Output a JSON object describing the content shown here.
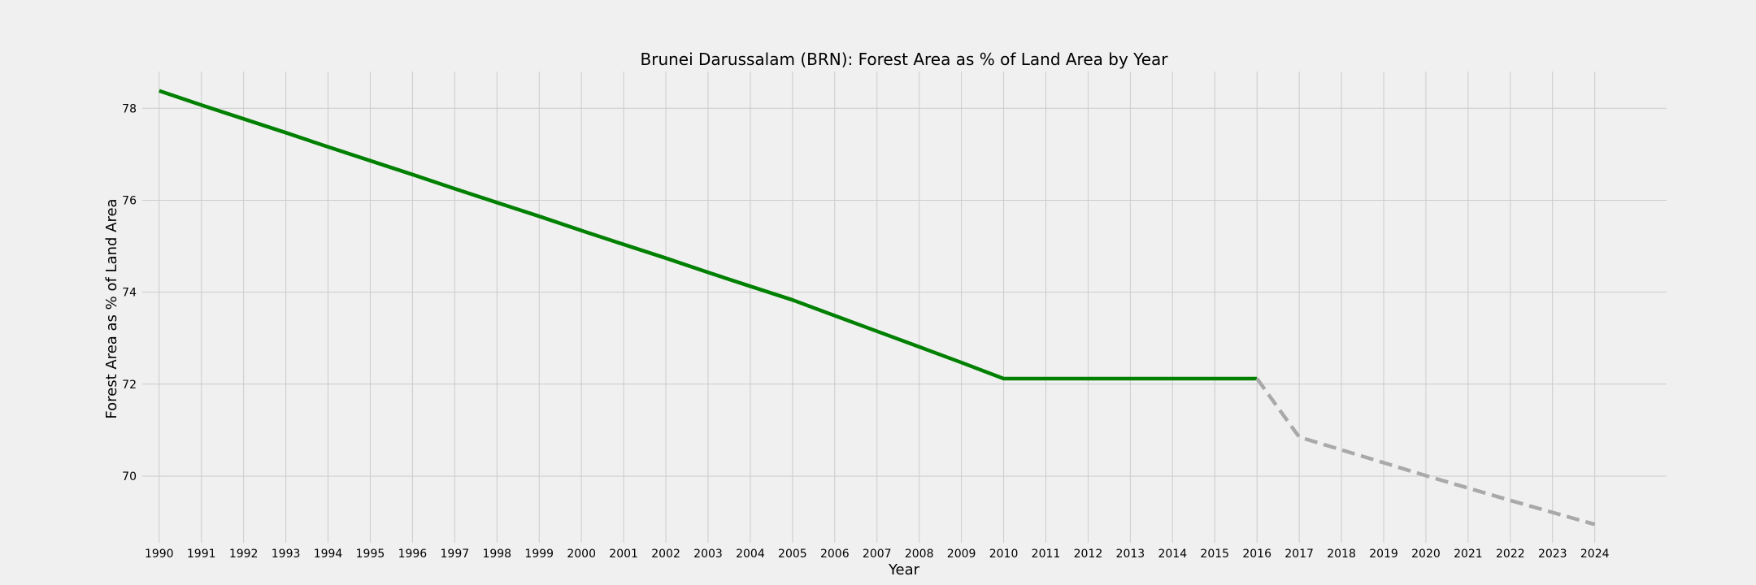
{
  "chart_data": {
    "type": "line",
    "title": "Brunei Darussalam (BRN): Forest Area as % of Land Area by Year",
    "xlabel": "Year",
    "ylabel": "Forest Area as % of Land Area",
    "x": [
      1990,
      1991,
      1992,
      1993,
      1994,
      1995,
      1996,
      1997,
      1998,
      1999,
      2000,
      2001,
      2002,
      2003,
      2004,
      2005,
      2006,
      2007,
      2008,
      2009,
      2010,
      2011,
      2012,
      2013,
      2014,
      2015,
      2016,
      2017,
      2018,
      2019,
      2020,
      2021,
      2022,
      2023,
      2024
    ],
    "xlim": [
      1989.6,
      2025.7
    ],
    "ylim": [
      68.55,
      78.8
    ],
    "yticks": [
      70,
      72,
      74,
      76,
      78
    ],
    "grid": true,
    "series": [
      {
        "style": "solid",
        "color": "#008000",
        "x": [
          1990,
          1991,
          1992,
          1993,
          1994,
          1995,
          1996,
          1997,
          1998,
          1999,
          2000,
          2001,
          2002,
          2003,
          2004,
          2005,
          2006,
          2007,
          2008,
          2009,
          2010,
          2011,
          2012,
          2013,
          2014,
          2015,
          2016
        ],
        "values": [
          78.38,
          78.07,
          77.77,
          77.47,
          77.16,
          76.86,
          76.56,
          76.25,
          75.95,
          75.65,
          75.34,
          75.04,
          74.74,
          74.43,
          74.13,
          73.83,
          73.49,
          73.15,
          72.81,
          72.47,
          72.12,
          72.12,
          72.12,
          72.12,
          72.12,
          72.12,
          72.12
        ]
      },
      {
        "style": "dashed",
        "color": "#a9a9a9",
        "x": [
          2016,
          2017,
          2018,
          2019,
          2020,
          2021,
          2022,
          2023,
          2024
        ],
        "values": [
          72.12,
          70.85,
          70.57,
          70.29,
          70.01,
          69.74,
          69.47,
          69.21,
          68.95
        ]
      }
    ]
  }
}
